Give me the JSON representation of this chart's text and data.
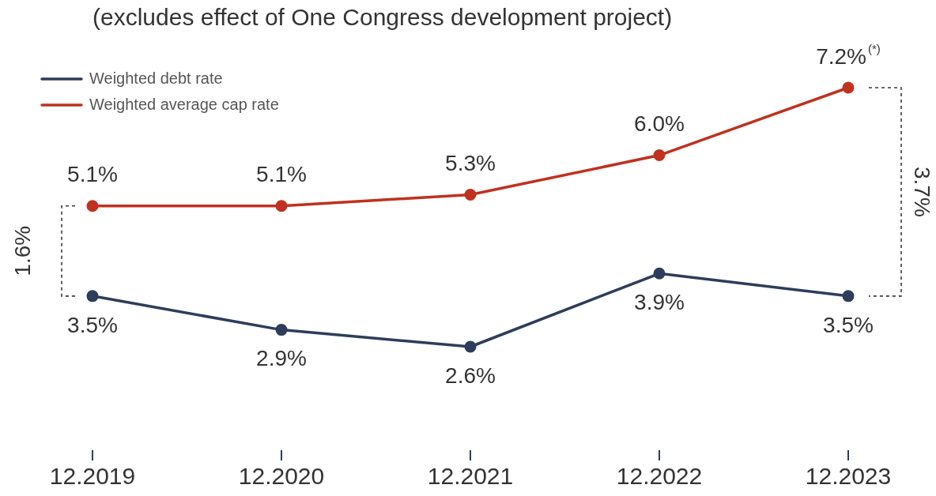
{
  "chart_data": {
    "type": "line",
    "title": "(excludes effect of One Congress development project)",
    "categories": [
      "12.2019",
      "12.2020",
      "12.2021",
      "12.2022",
      "12.2023"
    ],
    "series": [
      {
        "name": "Weighted debt rate",
        "color": "#2e3d5c",
        "values": [
          3.5,
          2.9,
          2.6,
          3.9,
          3.5
        ],
        "value_labels": [
          "3.5%",
          "2.9%",
          "2.6%",
          "3.9%",
          "3.5%"
        ]
      },
      {
        "name": "Weighted average cap rate",
        "color": "#c0311f",
        "values": [
          5.1,
          5.1,
          5.3,
          6.0,
          7.2
        ],
        "value_labels": [
          "5.1%",
          "5.1%",
          "5.3%",
          "6.0%",
          "7.2%$^{(*)}$"
        ]
      }
    ],
    "tick_labels": "x",
    "grid": false,
    "legend": "top left",
    "marker": "circle",
    "annotations": [
      "1.6%",
      "3.7%"
    ]
  }
}
